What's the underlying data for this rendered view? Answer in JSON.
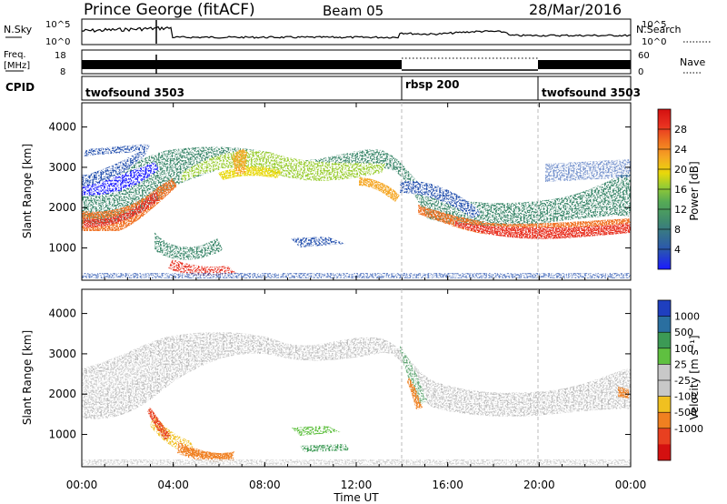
{
  "header": {
    "station": "Prince George (fitACF)",
    "beam": "Beam 05",
    "date": "28/Mar/2016"
  },
  "noise_panel": {
    "left_label": "N.Sky",
    "right_label": "N.Search",
    "ticks_left": [
      "10^5",
      "10^0"
    ],
    "ticks_right": [
      "10^5",
      "10^0"
    ]
  },
  "freq_panel": {
    "left_label_line1": "Freq.",
    "left_label_line2": "[MHz]",
    "right_label": "Nave",
    "ticks_left": [
      "18",
      "8"
    ],
    "ticks_right": [
      "60",
      "0"
    ]
  },
  "cpid_panel": {
    "label": "CPID",
    "segments": [
      {
        "name": "twofsound 3503",
        "start_hour": 0,
        "end_hour": 14
      },
      {
        "name": "rbsp 200",
        "start_hour": 14,
        "end_hour": 20
      },
      {
        "name": "twofsound 3503",
        "start_hour": 20,
        "end_hour": 24
      }
    ]
  },
  "x_axis": {
    "label": "Time UT",
    "ticks": [
      "00:00",
      "04:00",
      "08:00",
      "12:00",
      "16:00",
      "20:00",
      "00:00"
    ]
  },
  "chart_data": [
    {
      "type": "heatmap",
      "name": "power",
      "ylabel": "Slant Range [km]",
      "yticks": [
        "1000",
        "2000",
        "3000",
        "4000"
      ],
      "ylim": [
        200,
        4600
      ],
      "colorbar_label": "Power [dB]",
      "colorbar_ticks": [
        "4",
        "8",
        "12",
        "16",
        "20",
        "24",
        "28"
      ],
      "colorbar_colors": [
        "#1a1aff",
        "#2a55b0",
        "#3f8a6e",
        "#55aa55",
        "#9acd32",
        "#e8d80a",
        "#f5a623",
        "#f07020",
        "#e83020",
        "#d41010"
      ]
    },
    {
      "type": "heatmap",
      "name": "velocity",
      "ylabel": "Slant Range [km]",
      "yticks": [
        "1000",
        "2000",
        "3000",
        "4000"
      ],
      "ylim": [
        200,
        4600
      ],
      "colorbar_label": "Velocity [m s⁻¹]",
      "colorbar_ticks": [
        "1000",
        "500",
        "100",
        "25",
        "-25",
        "-100",
        "-500",
        "-1000"
      ],
      "colorbar_colors": [
        "#1f3fbf",
        "#2a6fa0",
        "#3c9a55",
        "#5fc040",
        "#c8c8c8",
        "#c8c8c8",
        "#f0c020",
        "#f08020",
        "#e84020",
        "#d41010"
      ]
    }
  ]
}
